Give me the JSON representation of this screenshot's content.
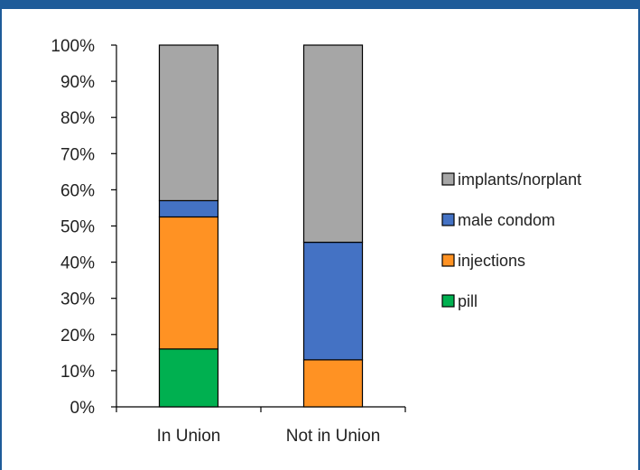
{
  "chart_data": {
    "type": "bar",
    "stacked": true,
    "categories": [
      "In Union",
      "Not in Union"
    ],
    "series": [
      {
        "name": "pill",
        "color": "#00b050",
        "values": [
          16,
          0
        ]
      },
      {
        "name": "injections",
        "color": "#ff9223",
        "values": [
          36.5,
          13
        ]
      },
      {
        "name": "male condom",
        "color": "#4472c4",
        "values": [
          4.5,
          32.5
        ]
      },
      {
        "name": "implants/norplant",
        "color": "#a6a6a6",
        "values": [
          43,
          54.5
        ]
      }
    ],
    "ylim": [
      0,
      100
    ],
    "yticks": [
      "0%",
      "10%",
      "20%",
      "30%",
      "40%",
      "50%",
      "60%",
      "70%",
      "80%",
      "90%",
      "100%"
    ],
    "grid": false,
    "legend_position": "right"
  }
}
